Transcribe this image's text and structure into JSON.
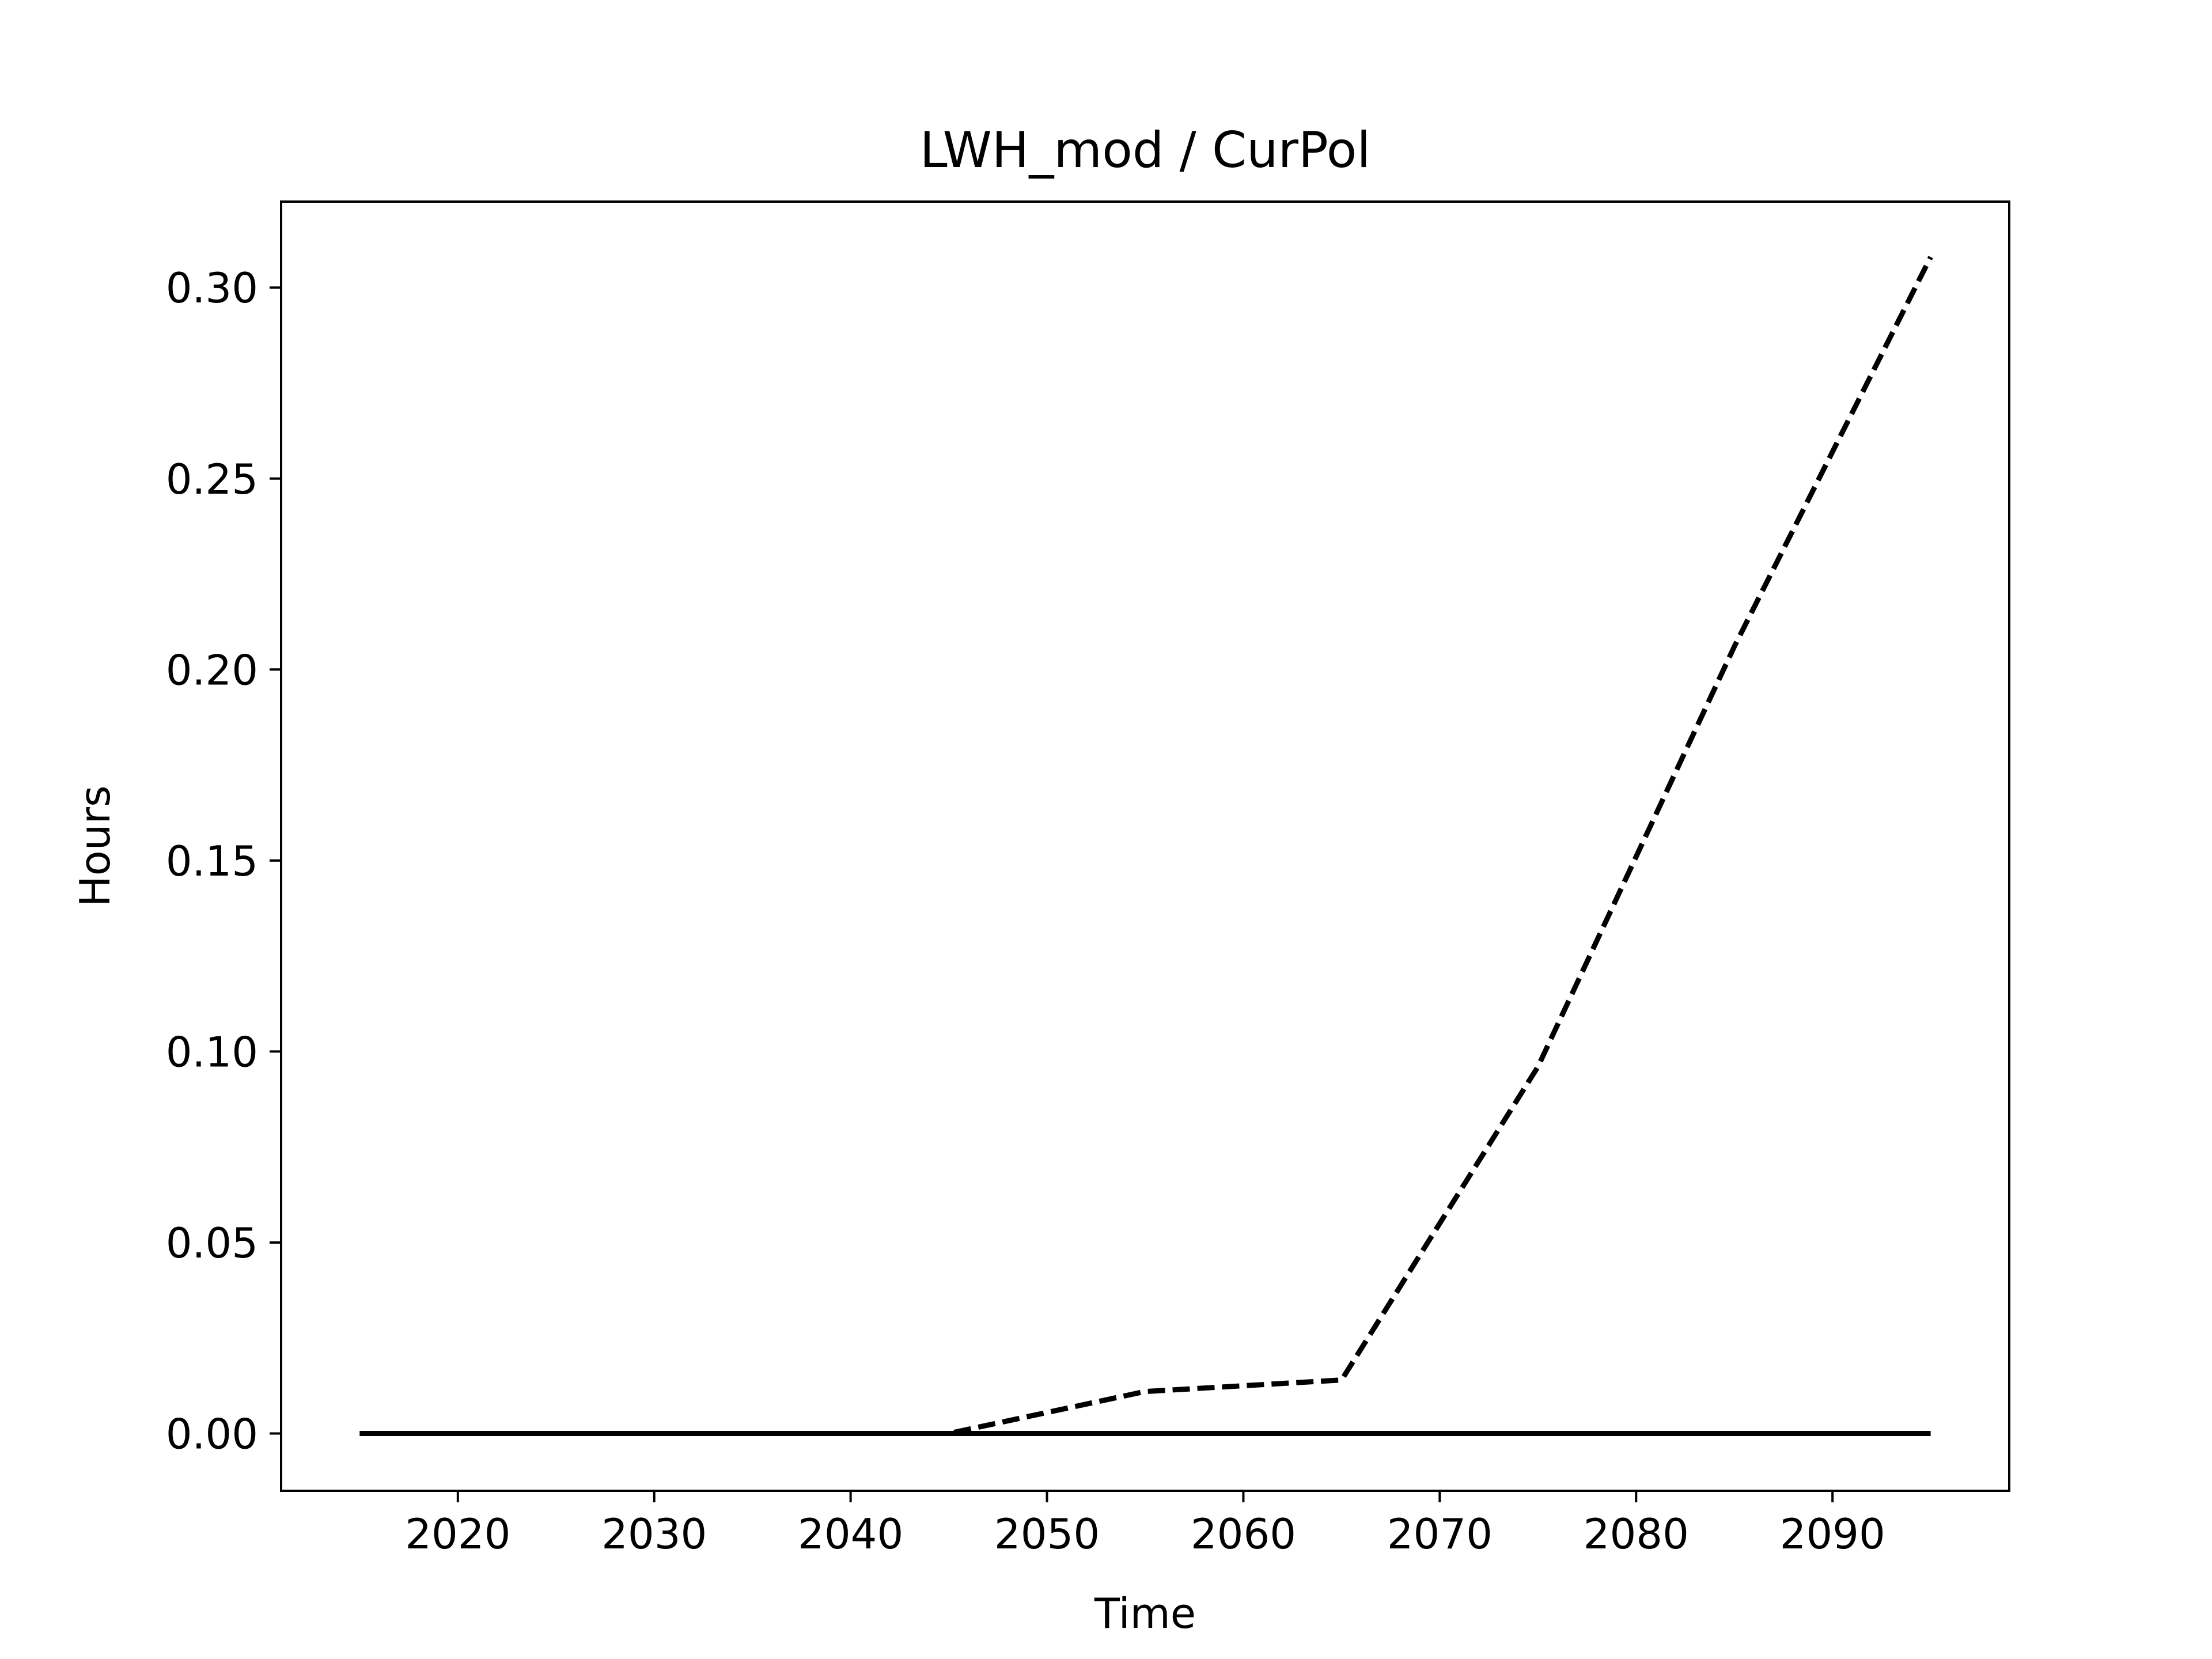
{
  "chart_data": {
    "type": "line",
    "title": "LWH_mod / CurPol",
    "xlabel": "Time",
    "ylabel": "Hours",
    "xlim": [
      2011,
      2099
    ],
    "ylim": [
      -0.015,
      0.3225
    ],
    "xticks": [
      2020,
      2030,
      2040,
      2050,
      2060,
      2070,
      2080,
      2090
    ],
    "yticks": [
      "0.00",
      "0.05",
      "0.10",
      "0.15",
      "0.20",
      "0.25",
      "0.30"
    ],
    "grid": false,
    "legend": "none",
    "series": [
      {
        "style": "dashed",
        "color": "#000000",
        "x": [
          2015,
          2025,
          2035,
          2045,
          2055,
          2065,
          2075,
          2085,
          2095
        ],
        "y": [
          0.0,
          0.0,
          0.0,
          0.0,
          0.011,
          0.014,
          0.096,
          0.206,
          0.308
        ]
      },
      {
        "style": "solid",
        "color": "#000000",
        "x": [
          2015,
          2025,
          2035,
          2045,
          2055,
          2065,
          2075,
          2085,
          2095
        ],
        "y": [
          0.0,
          0.0,
          0.0,
          0.0,
          0.0,
          0.0,
          0.0,
          0.0,
          0.0
        ]
      }
    ]
  }
}
